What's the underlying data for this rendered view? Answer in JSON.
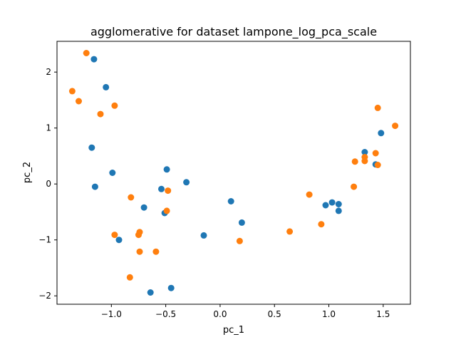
{
  "chart_data": {
    "type": "scatter",
    "title": "agglomerative for dataset lampone_log_pca_scale",
    "xlabel": "pc_1",
    "ylabel": "pc_2",
    "xlim": [
      -1.5,
      1.75
    ],
    "ylim": [
      -2.15,
      2.55
    ],
    "xticks": [
      -1.0,
      -0.5,
      0.0,
      0.5,
      1.0,
      1.5
    ],
    "xtick_labels": [
      "−1.0",
      "−0.5",
      "0.0",
      "0.5",
      "1.0",
      "1.5"
    ],
    "yticks": [
      -2,
      -1,
      0,
      1,
      2
    ],
    "ytick_labels": [
      "−2",
      "−1",
      "0",
      "1",
      "2"
    ],
    "grid": false,
    "series": [
      {
        "color": "#1f77b4",
        "points": [
          [
            -1.16,
            2.23
          ],
          [
            -1.05,
            1.73
          ],
          [
            -1.18,
            0.65
          ],
          [
            -0.99,
            0.2
          ],
          [
            -1.15,
            -0.05
          ],
          [
            -0.93,
            -1.0
          ],
          [
            -0.7,
            -0.42
          ],
          [
            -0.54,
            -0.09
          ],
          [
            -0.51,
            -0.52
          ],
          [
            -0.49,
            0.26
          ],
          [
            -0.31,
            0.03
          ],
          [
            -0.64,
            -1.94
          ],
          [
            -0.45,
            -1.86
          ],
          [
            -0.15,
            -0.92
          ],
          [
            0.1,
            -0.31
          ],
          [
            0.2,
            -0.69
          ],
          [
            0.97,
            -0.38
          ],
          [
            1.03,
            -0.33
          ],
          [
            1.09,
            -0.36
          ],
          [
            1.09,
            -0.48
          ],
          [
            1.33,
            0.57
          ],
          [
            1.43,
            0.35
          ],
          [
            1.48,
            0.91
          ]
        ]
      },
      {
        "color": "#ff7f0e",
        "points": [
          [
            -1.23,
            2.34
          ],
          [
            -1.36,
            1.66
          ],
          [
            -1.3,
            1.48
          ],
          [
            -1.1,
            1.25
          ],
          [
            -0.97,
            1.4
          ],
          [
            -0.82,
            -0.24
          ],
          [
            -0.48,
            -0.12
          ],
          [
            -0.49,
            -0.48
          ],
          [
            -0.97,
            -0.91
          ],
          [
            -0.74,
            -0.86
          ],
          [
            -0.75,
            -0.91
          ],
          [
            -0.74,
            -1.21
          ],
          [
            -0.59,
            -1.21
          ],
          [
            -0.83,
            -1.67
          ],
          [
            0.18,
            -1.02
          ],
          [
            0.64,
            -0.85
          ],
          [
            0.82,
            -0.19
          ],
          [
            0.93,
            -0.72
          ],
          [
            1.23,
            -0.05
          ],
          [
            1.24,
            0.4
          ],
          [
            1.33,
            0.41
          ],
          [
            1.33,
            0.48
          ],
          [
            1.43,
            0.55
          ],
          [
            1.45,
            0.34
          ],
          [
            1.45,
            1.36
          ],
          [
            1.61,
            1.04
          ]
        ]
      }
    ]
  }
}
